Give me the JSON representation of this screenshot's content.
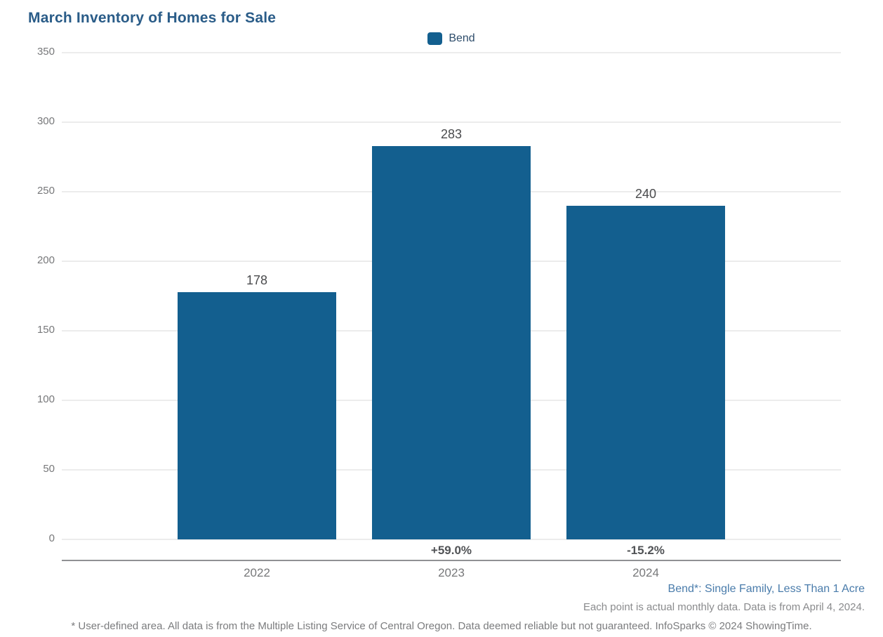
{
  "chart_data": {
    "type": "bar",
    "title": "March Inventory of Homes for Sale",
    "legend": [
      {
        "label": "Bend",
        "color": "#135f8f"
      }
    ],
    "legend_position": "top-center",
    "categories": [
      "2022",
      "2023",
      "2024"
    ],
    "series": [
      {
        "name": "Bend",
        "values": [
          178,
          283,
          240
        ]
      }
    ],
    "value_labels": [
      "178",
      "283",
      "240"
    ],
    "pct_change_labels": [
      "",
      "+59.0%",
      "-15.2%"
    ],
    "ylim": [
      0,
      350
    ],
    "yticks": [
      0,
      50,
      100,
      150,
      200,
      250,
      300,
      350
    ],
    "grid": true,
    "bar_color": "#135f8f",
    "xlabel": "",
    "ylabel": ""
  },
  "annotations": {
    "series_definition": "Bend*: Single Family, Less Than 1 Acre",
    "data_note": "Each point is actual monthly data. Data is from April 4, 2024.",
    "footnote": "* User-defined area. All data is from the Multiple Listing Service of Central Oregon. Data deemed reliable but not guaranteed. InfoSparks © 2024 ShowingTime."
  },
  "colors": {
    "bar": "#135f8f",
    "title": "#2a5c88",
    "gridline": "#ececec",
    "axis_line": "#909194",
    "tick_text": "#77787a",
    "value_text": "#4a4b4d",
    "pct_text": "#515356",
    "note_blue": "#4a7cab",
    "note_gray": "#8a8b8d"
  }
}
